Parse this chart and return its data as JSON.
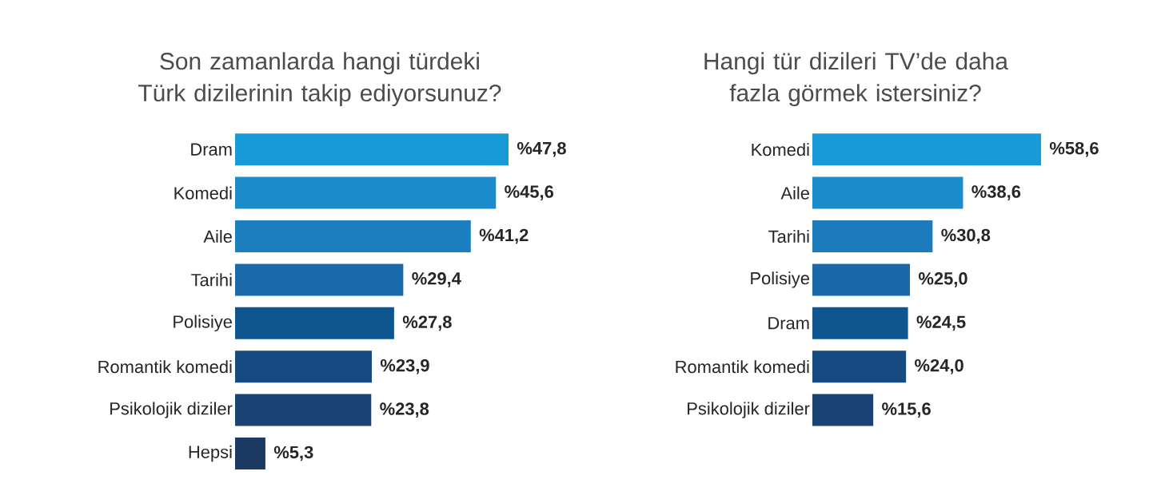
{
  "chart_data": [
    {
      "type": "bar",
      "orientation": "horizontal",
      "title": "Son zamanlarda hangi türdeki Türk dizilerinin takip ediyorsunuz?",
      "categories": [
        "Dram",
        "Komedi",
        "Aile",
        "Tarihi",
        "Polisiye",
        "Romantik komedi",
        "Psikolojik diziler",
        "Hepsi"
      ],
      "values": [
        47.8,
        45.6,
        41.2,
        29.4,
        27.8,
        23.9,
        23.8,
        5.3
      ],
      "value_labels": [
        "%47,8",
        "%45,6",
        "%41,2",
        "%29,4",
        "%27,8",
        "%23,9",
        "%23,8",
        "%5,3"
      ],
      "colors": [
        "#179ad6",
        "#1a8ccb",
        "#1b7fbf",
        "#1a6aaa",
        "#0f5590",
        "#164a80",
        "#1a4272",
        "#1b3a63"
      ]
    },
    {
      "type": "bar",
      "orientation": "horizontal",
      "title": "Hangi tür dizileri TV’de daha fazla görmek istersiniz?",
      "categories": [
        "Komedi",
        "Aile",
        "Tarihi",
        "Polisiye",
        "Dram",
        "Romantik komedi",
        "Psikolojik diziler"
      ],
      "values": [
        58.6,
        38.6,
        30.8,
        25.0,
        24.5,
        24.0,
        15.6
      ],
      "value_labels": [
        "%58,6",
        "%38,6",
        "%30,8",
        "%25,0",
        "%24,5",
        "%24,0",
        "%15,6"
      ],
      "colors": [
        "#179ad6",
        "#1a8ccb",
        "#1b7bbc",
        "#1a68a8",
        "#0f5590",
        "#164a80",
        "#1a4272"
      ]
    }
  ]
}
